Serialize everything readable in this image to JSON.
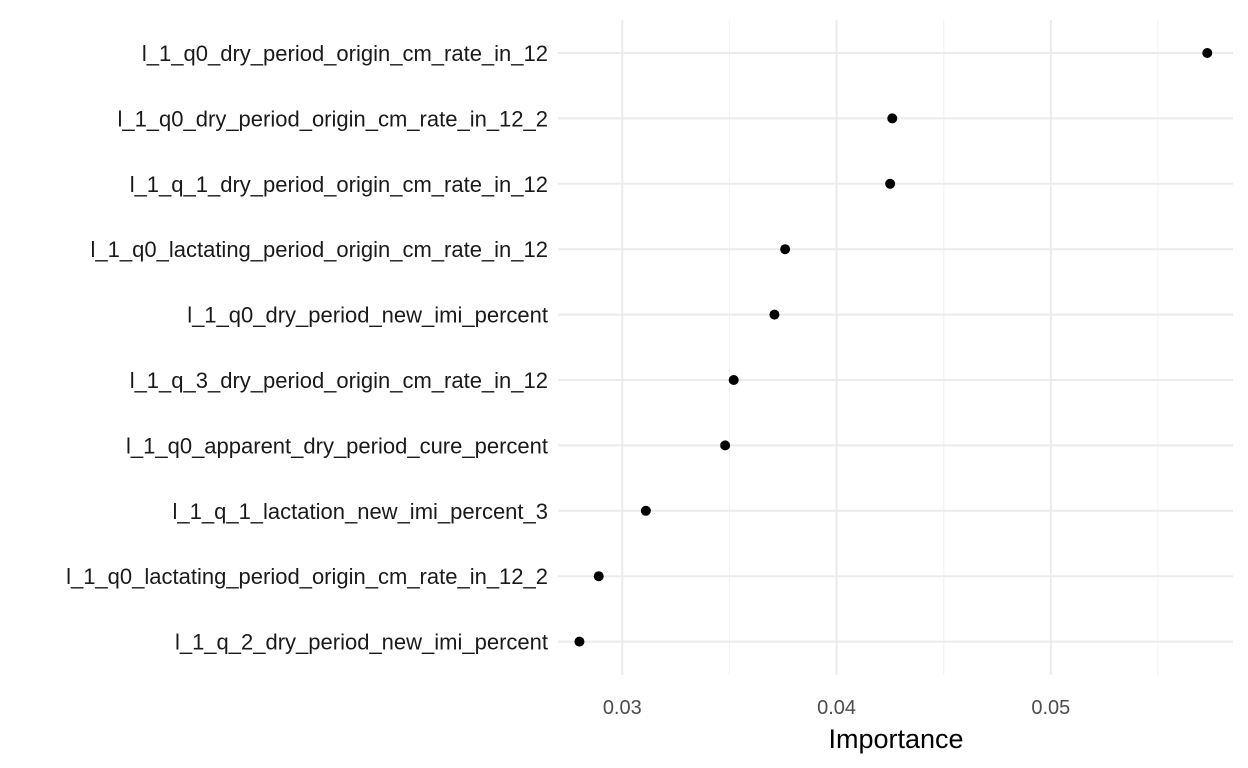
{
  "chart_data": {
    "type": "scatter",
    "title": "",
    "xlabel": "Importance",
    "ylabel": "",
    "xlim": [
      0.027,
      0.0585
    ],
    "xticks": [
      0.03,
      0.04,
      0.05
    ],
    "xtick_labels": [
      "0.03",
      "0.04",
      "0.05"
    ],
    "grid": true,
    "legend": "none",
    "point_color": "#000000",
    "categories": [
      "l_1_q0_dry_period_origin_cm_rate_in_12",
      "l_1_q0_dry_period_origin_cm_rate_in_12_2",
      "l_1_q_1_dry_period_origin_cm_rate_in_12",
      "l_1_q0_lactating_period_origin_cm_rate_in_12",
      "l_1_q0_dry_period_new_imi_percent",
      "l_1_q_3_dry_period_origin_cm_rate_in_12",
      "l_1_q0_apparent_dry_period_cure_percent",
      "l_1_q_1_lactation_new_imi_percent_3",
      "l_1_q0_lactating_period_origin_cm_rate_in_12_2",
      "l_1_q_2_dry_period_new_imi_percent"
    ],
    "values": [
      0.0573,
      0.0426,
      0.0425,
      0.0376,
      0.0371,
      0.0352,
      0.0348,
      0.0311,
      0.0289,
      0.028
    ]
  }
}
